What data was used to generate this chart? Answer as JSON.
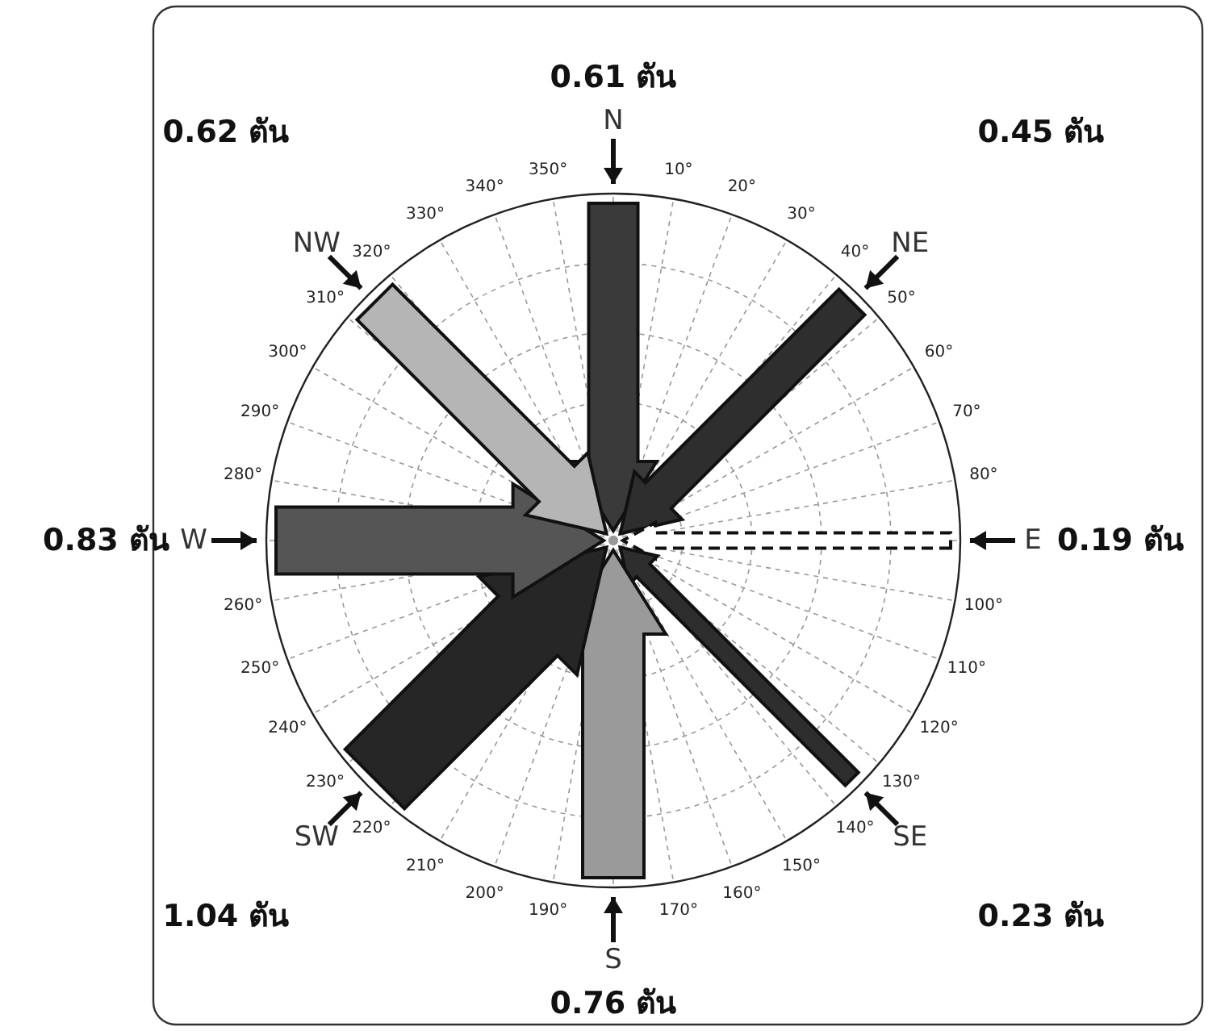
{
  "chart_data": {
    "type": "other",
    "categories": [
      "N",
      "NE",
      "E",
      "SE",
      "S",
      "SW",
      "W",
      "NW"
    ],
    "values": [
      0.61,
      0.45,
      0.19,
      0.23,
      0.76,
      1.04,
      0.83,
      0.62
    ],
    "value_labels": [
      "0.61 ตัน",
      "0.45 ตัน",
      "0.19 ตัน",
      "0.23 ตัน",
      "0.76 ตัน",
      "1.04 ตัน",
      "0.83 ตัน",
      "0.62 ตัน"
    ],
    "colors": [
      "#3a3a3a",
      "#2e2e2e",
      "#ffffff",
      "#2e2e2e",
      "#9a9a9a",
      "#262626",
      "#555555",
      "#b5b5b5"
    ],
    "annotations": [
      "10°",
      "20°",
      "30°",
      "40°",
      "50°",
      "60°",
      "70°",
      "80°",
      "100°",
      "110°",
      "120°",
      "130°",
      "140°",
      "150°",
      "160°",
      "170°",
      "190°",
      "200°",
      "210°",
      "220°",
      "230°",
      "240°",
      "250°",
      "260°",
      "280°",
      "290°",
      "300°",
      "310°",
      "320°",
      "330°",
      "340°",
      "350°"
    ]
  }
}
